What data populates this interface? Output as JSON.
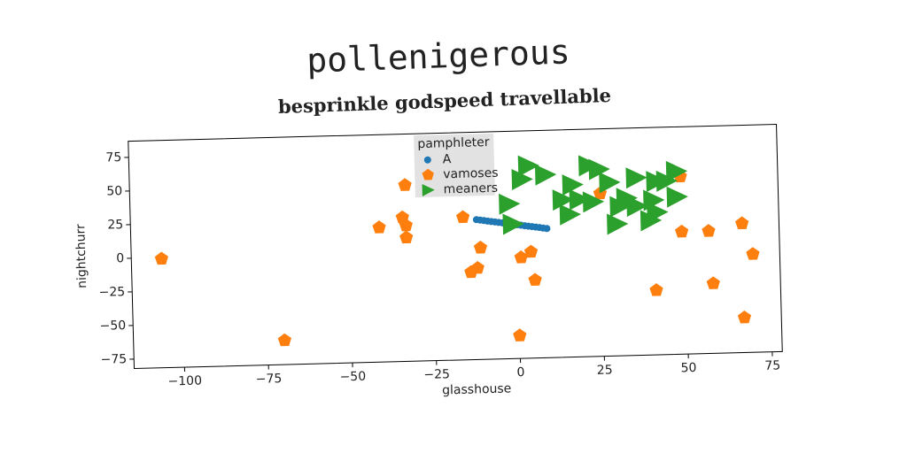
{
  "chart_data": {
    "type": "scatter",
    "title": "pollenigerous",
    "subtitle": "besprinkle godspeed travellable",
    "xlabel": "glasshouse",
    "ylabel": "nightchurr",
    "legend_title": "pamphleter",
    "legend": "upper center",
    "xlim": [
      -115,
      78
    ],
    "ylim": [
      -82,
      87
    ],
    "xticks": [
      {
        "value": -100,
        "label": "−100"
      },
      {
        "value": -75,
        "label": "−75"
      },
      {
        "value": -50,
        "label": "−50"
      },
      {
        "value": -25,
        "label": "−25"
      },
      0,
      25,
      50,
      75
    ],
    "yticks": [
      {
        "value": -75,
        "label": "−75"
      },
      {
        "value": -50,
        "label": "−50"
      },
      {
        "value": -25,
        "label": "−25"
      },
      0,
      25,
      50,
      75
    ],
    "series": [
      {
        "name": "A",
        "color": "#1f77b4",
        "marker": "o",
        "x": [
          -12,
          -10.9,
          -9.8,
          -8.7,
          -7.6,
          -6.5,
          -5.4,
          -4.3,
          -3.2,
          -2.1,
          -1,
          0.1,
          1.2,
          2.3,
          3.4,
          4.5,
          5.6,
          6.7,
          7.8,
          8.9
        ],
        "values": [
          22,
          21.6,
          21.2,
          20.7,
          20.3,
          19.9,
          19.5,
          19.1,
          18.6,
          18.2,
          17.8,
          17.4,
          17,
          16.5,
          16.1,
          15.7,
          15.3,
          14.9,
          14.4,
          14
        ]
      },
      {
        "name": "vamoses",
        "color": "#ff7f0e",
        "marker": "p",
        "x": [
          -106,
          -70,
          -33,
          -41,
          -34,
          -33,
          -33,
          -16,
          -11,
          -12,
          -14,
          0,
          1,
          4,
          5,
          25,
          41,
          49,
          49,
          57,
          58,
          67,
          67,
          70
        ],
        "values": [
          -1,
          -64,
          49,
          18,
          25,
          19,
          10,
          24,
          1,
          -14,
          -17,
          -65,
          -7,
          -3,
          -24,
          39,
          -34,
          50,
          9,
          9,
          -30,
          14,
          -56,
          -9
        ]
      },
      {
        "name": "meaners",
        "color": "#2ca02c",
        "marker": ">",
        "x": [
          4,
          9,
          2,
          -2,
          -1,
          22,
          25,
          17,
          28,
          14,
          19,
          16,
          23,
          31,
          30,
          36,
          36,
          40,
          42,
          42,
          45,
          48,
          48,
          41,
          33
        ],
        "values": [
          61,
          54,
          51,
          33,
          18,
          60,
          57,
          46,
          47,
          35,
          35,
          24,
          33,
          29,
          16,
          50,
          29,
          18,
          24,
          47,
          47,
          54,
          35,
          33,
          35
        ]
      }
    ]
  }
}
